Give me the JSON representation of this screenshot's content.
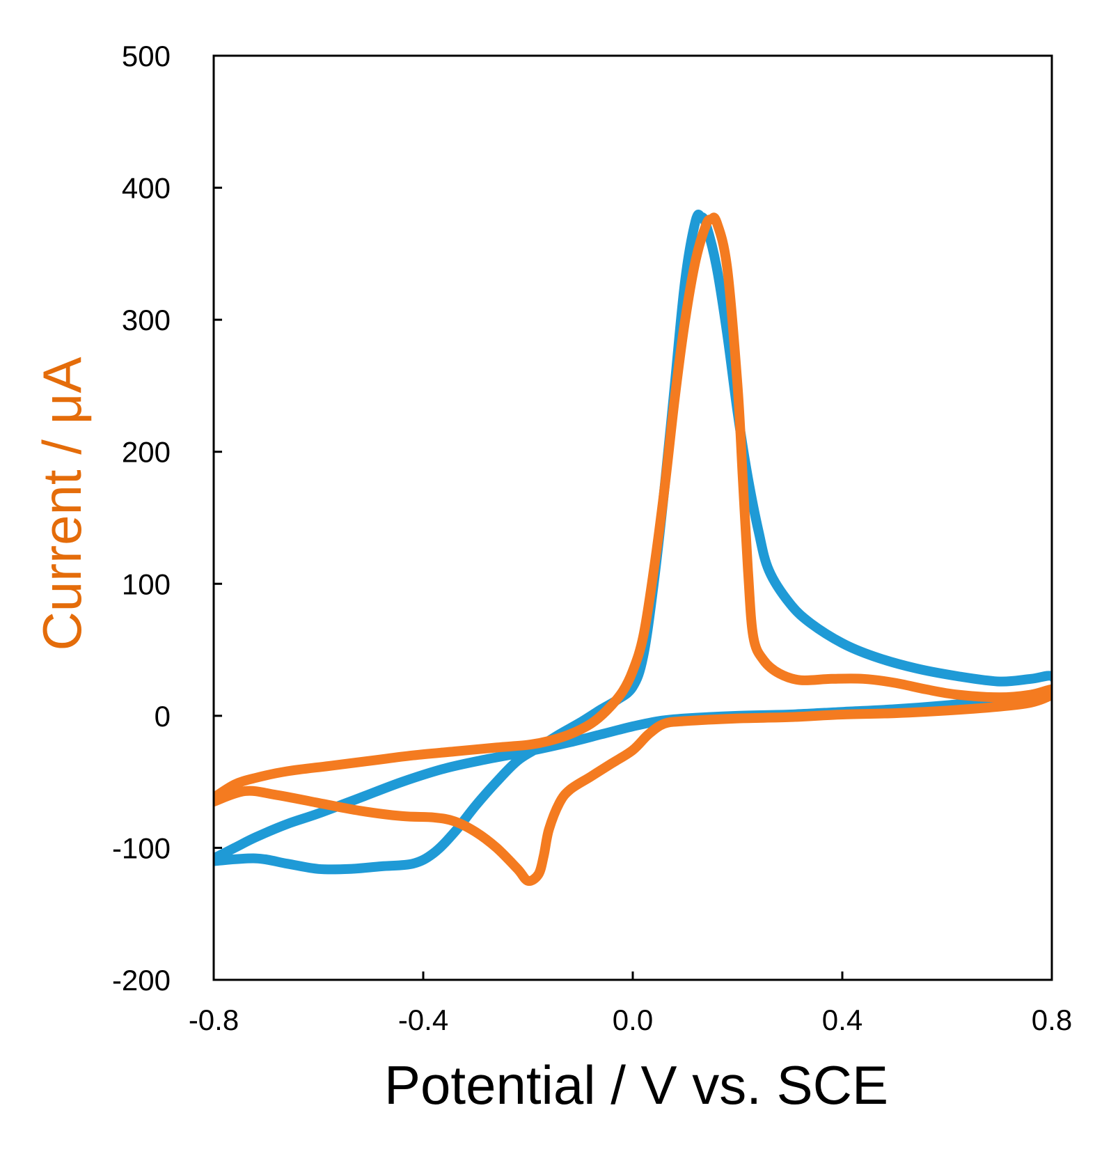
{
  "chart_data": {
    "type": "line",
    "title": "",
    "xlabel": "Potential / V vs. SCE",
    "ylabel": "Current / μA",
    "xlim": [
      -0.8,
      0.8
    ],
    "ylim": [
      -200,
      500
    ],
    "x_ticks": [
      -0.8,
      -0.4,
      0.0,
      0.4,
      0.8
    ],
    "x_tick_labels": [
      "-0.8",
      "-0.4",
      "0.0",
      "0.4",
      "0.8"
    ],
    "y_ticks": [
      -200,
      -100,
      0,
      100,
      200,
      300,
      400,
      500
    ],
    "y_tick_labels": [
      "-200",
      "-100",
      "0",
      "100",
      "200",
      "300",
      "400",
      "500"
    ],
    "grid": false,
    "legend": null,
    "colors": {
      "ylabel": "#e46c0a",
      "axis": "#000000"
    },
    "series": [
      {
        "name": "blue",
        "color": "#1f9ad6",
        "points": [
          [
            -0.8,
            -108
          ],
          [
            -0.76,
            -100
          ],
          [
            -0.72,
            -92
          ],
          [
            -0.66,
            -82
          ],
          [
            -0.6,
            -74
          ],
          [
            -0.52,
            -62
          ],
          [
            -0.44,
            -50
          ],
          [
            -0.36,
            -40
          ],
          [
            -0.28,
            -33
          ],
          [
            -0.2,
            -27
          ],
          [
            -0.12,
            -20
          ],
          [
            -0.06,
            -14
          ],
          [
            0.0,
            -8
          ],
          [
            0.05,
            -4
          ],
          [
            0.1,
            -2
          ],
          [
            0.2,
            0
          ],
          [
            0.3,
            1
          ],
          [
            0.4,
            3
          ],
          [
            0.5,
            5
          ],
          [
            0.6,
            8
          ],
          [
            0.7,
            12
          ],
          [
            0.8,
            20
          ],
          [
            0.8,
            30
          ],
          [
            0.76,
            28
          ],
          [
            0.7,
            26
          ],
          [
            0.62,
            30
          ],
          [
            0.54,
            36
          ],
          [
            0.46,
            45
          ],
          [
            0.4,
            55
          ],
          [
            0.34,
            70
          ],
          [
            0.3,
            85
          ],
          [
            0.26,
            110
          ],
          [
            0.24,
            140
          ],
          [
            0.22,
            180
          ],
          [
            0.2,
            230
          ],
          [
            0.18,
            290
          ],
          [
            0.16,
            340
          ],
          [
            0.14,
            372
          ],
          [
            0.13,
            378
          ],
          [
            0.12,
            375
          ],
          [
            0.1,
            330
          ],
          [
            0.08,
            250
          ],
          [
            0.06,
            170
          ],
          [
            0.04,
            100
          ],
          [
            0.02,
            45
          ],
          [
            0.0,
            22
          ],
          [
            -0.03,
            12
          ],
          [
            -0.06,
            5
          ],
          [
            -0.1,
            -5
          ],
          [
            -0.14,
            -14
          ],
          [
            -0.18,
            -24
          ],
          [
            -0.22,
            -34
          ],
          [
            -0.26,
            -50
          ],
          [
            -0.3,
            -68
          ],
          [
            -0.34,
            -88
          ],
          [
            -0.38,
            -104
          ],
          [
            -0.42,
            -112
          ],
          [
            -0.48,
            -114
          ],
          [
            -0.54,
            -116
          ],
          [
            -0.6,
            -116
          ],
          [
            -0.66,
            -112
          ],
          [
            -0.72,
            -108
          ],
          [
            -0.8,
            -110
          ]
        ]
      },
      {
        "name": "orange",
        "color": "#f47b20",
        "points": [
          [
            -0.8,
            -62
          ],
          [
            -0.76,
            -52
          ],
          [
            -0.72,
            -47
          ],
          [
            -0.66,
            -42
          ],
          [
            -0.58,
            -38
          ],
          [
            -0.5,
            -34
          ],
          [
            -0.42,
            -30
          ],
          [
            -0.34,
            -27
          ],
          [
            -0.26,
            -24
          ],
          [
            -0.2,
            -22
          ],
          [
            -0.16,
            -19
          ],
          [
            -0.12,
            -14
          ],
          [
            -0.08,
            -6
          ],
          [
            -0.05,
            4
          ],
          [
            -0.02,
            18
          ],
          [
            0.0,
            34
          ],
          [
            0.02,
            60
          ],
          [
            0.04,
            110
          ],
          [
            0.06,
            170
          ],
          [
            0.08,
            240
          ],
          [
            0.1,
            300
          ],
          [
            0.12,
            345
          ],
          [
            0.14,
            372
          ],
          [
            0.15,
            376
          ],
          [
            0.16,
            374
          ],
          [
            0.18,
            340
          ],
          [
            0.2,
            250
          ],
          [
            0.21,
            180
          ],
          [
            0.22,
            110
          ],
          [
            0.23,
            60
          ],
          [
            0.25,
            42
          ],
          [
            0.28,
            32
          ],
          [
            0.32,
            27
          ],
          [
            0.38,
            28
          ],
          [
            0.44,
            28
          ],
          [
            0.5,
            25
          ],
          [
            0.56,
            20
          ],
          [
            0.62,
            16
          ],
          [
            0.7,
            14
          ],
          [
            0.76,
            16
          ],
          [
            0.8,
            20
          ],
          [
            0.8,
            16
          ],
          [
            0.76,
            10
          ],
          [
            0.7,
            7
          ],
          [
            0.6,
            4
          ],
          [
            0.5,
            2
          ],
          [
            0.4,
            1
          ],
          [
            0.3,
            -1
          ],
          [
            0.2,
            -2
          ],
          [
            0.1,
            -4
          ],
          [
            0.06,
            -6
          ],
          [
            0.03,
            -14
          ],
          [
            0.0,
            -26
          ],
          [
            -0.04,
            -36
          ],
          [
            -0.08,
            -46
          ],
          [
            -0.12,
            -56
          ],
          [
            -0.14,
            -66
          ],
          [
            -0.16,
            -86
          ],
          [
            -0.17,
            -106
          ],
          [
            -0.18,
            -120
          ],
          [
            -0.2,
            -125
          ],
          [
            -0.22,
            -116
          ],
          [
            -0.26,
            -100
          ],
          [
            -0.3,
            -88
          ],
          [
            -0.34,
            -80
          ],
          [
            -0.38,
            -77
          ],
          [
            -0.44,
            -76
          ],
          [
            -0.52,
            -72
          ],
          [
            -0.6,
            -66
          ],
          [
            -0.68,
            -60
          ],
          [
            -0.74,
            -57
          ],
          [
            -0.8,
            -65
          ]
        ]
      }
    ]
  }
}
